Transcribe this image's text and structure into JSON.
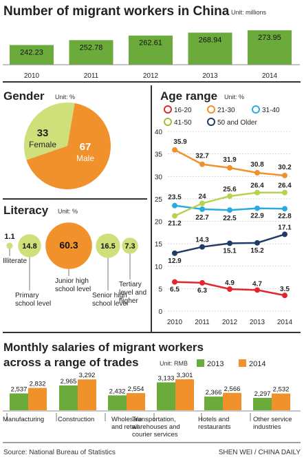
{
  "colors": {
    "green": "#6aab3c",
    "green_light": "#cfe07a",
    "orange": "#f0912b",
    "red": "#e3262e",
    "cyan": "#29abe2",
    "navy": "#1f3b66"
  },
  "headline": {
    "title": "Number of migrant workers in China",
    "unit": "Unit: millions",
    "chart_data": {
      "type": "bar",
      "categories": [
        "2010",
        "2011",
        "2012",
        "2013",
        "2014"
      ],
      "values": [
        242.23,
        252.78,
        262.61,
        268.94,
        273.95
      ],
      "value_labels": [
        "242.23",
        "252.78",
        "262.61",
        "268.94",
        "273.95"
      ]
    }
  },
  "gender": {
    "title": "Gender",
    "unit": "Unit: %",
    "chart_data": {
      "type": "pie",
      "slices": [
        {
          "name": "Female",
          "value": 33,
          "value_label": "33"
        },
        {
          "name": "Male",
          "value": 67,
          "value_label": "67"
        }
      ]
    }
  },
  "literacy": {
    "title": "Literacy",
    "unit": "Unit: %",
    "chart_data": {
      "type": "bubble",
      "categories": [
        "Illiterate",
        "Primary school level",
        "Junior high school level",
        "Senior high school level",
        "Tertiary level and higher"
      ],
      "values": [
        1.1,
        14.8,
        60.3,
        16.5,
        7.3
      ],
      "value_labels": [
        "1.1",
        "14.8",
        "60.3",
        "16.5",
        "7.3"
      ],
      "label_lines": [
        [
          "Illiterate"
        ],
        [
          "Primary",
          "school level"
        ],
        [
          "Junior high",
          "school level"
        ],
        [
          "Senior high",
          "school level"
        ],
        [
          "Tertiary",
          "level and",
          "higher"
        ]
      ]
    }
  },
  "age": {
    "title": "Age range",
    "unit": "Unit: %",
    "chart_data": {
      "type": "line",
      "x": [
        "2010",
        "2011",
        "2012",
        "2013",
        "2014"
      ],
      "ylim": [
        0,
        40
      ],
      "yticks": [
        "0",
        "5",
        "10",
        "15",
        "20",
        "25",
        "30",
        "35",
        "40"
      ],
      "series": [
        {
          "name": "16-20",
          "values": [
            6.5,
            6.3,
            4.9,
            4.7,
            3.5
          ],
          "labels": [
            "6.5",
            "6.3",
            "4.9",
            "4.7",
            "3.5"
          ]
        },
        {
          "name": "21-30",
          "values": [
            35.9,
            32.7,
            31.9,
            30.8,
            30.2
          ],
          "labels": [
            "35.9",
            "32.7",
            "31.9",
            "30.8",
            "30.2"
          ]
        },
        {
          "name": "31-40",
          "values": [
            23.5,
            22.7,
            22.5,
            22.9,
            22.8
          ],
          "labels": [
            "23.5",
            "22.7",
            "22.5",
            "22.9",
            "22.8"
          ]
        },
        {
          "name": "41-50",
          "values": [
            21.2,
            24,
            25.6,
            26.4,
            26.4
          ],
          "labels": [
            "21.2",
            "24",
            "25.6",
            "26.4",
            "26.4"
          ]
        },
        {
          "name": "50 and Older",
          "values": [
            12.9,
            14.3,
            15.1,
            15.2,
            17.1
          ],
          "labels": [
            "12.9",
            "14.3",
            "15.1",
            "15.2",
            "17.1"
          ]
        }
      ]
    }
  },
  "salaries": {
    "title_line1": "Monthly salaries of migrant workers",
    "title_line2": "across a range of trades",
    "unit": "Unit: RMB",
    "chart_data": {
      "type": "bar",
      "categories": [
        "Manufacturing",
        "Construction",
        "Wholesale and retail",
        "Transportation, warehouses and courier services",
        "Hotels and restaurants",
        "Other service industries"
      ],
      "category_lines": [
        [
          "Manufacturing"
        ],
        [
          "Construction"
        ],
        [
          "Wholesale",
          "and retail"
        ],
        [
          "Transportation,",
          "warehouses and",
          "courier services"
        ],
        [
          "Hotels and",
          "restaurants"
        ],
        [
          "Other service",
          "industries"
        ]
      ],
      "series": [
        {
          "name": "2013",
          "values": [
            2537,
            2965,
            2432,
            3133,
            2366,
            2297
          ],
          "labels": [
            "2,537",
            "2,965",
            "2,432",
            "3,133",
            "2,366",
            "2,297"
          ]
        },
        {
          "name": "2014",
          "values": [
            2832,
            3292,
            2554,
            3301,
            2566,
            2532
          ],
          "labels": [
            "2,832",
            "3,292",
            "2,554",
            "3,301",
            "2,566",
            "2,532"
          ]
        }
      ]
    }
  },
  "footer": {
    "source": "Source: National Bureau of Statistics",
    "credit": "SHEN WEI / CHINA DAILY"
  }
}
